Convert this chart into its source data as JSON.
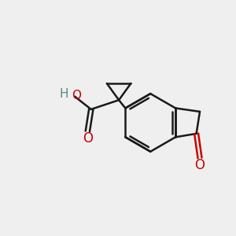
{
  "bg_color": "#efefef",
  "line_color": "#1a1a1a",
  "red_color": "#cc0000",
  "ho_color": "#5a8a8a",
  "lw": 1.8,
  "figsize": [
    3.0,
    3.0
  ],
  "dpi": 100,
  "xlim": [
    0,
    10
  ],
  "ylim": [
    0,
    10
  ]
}
